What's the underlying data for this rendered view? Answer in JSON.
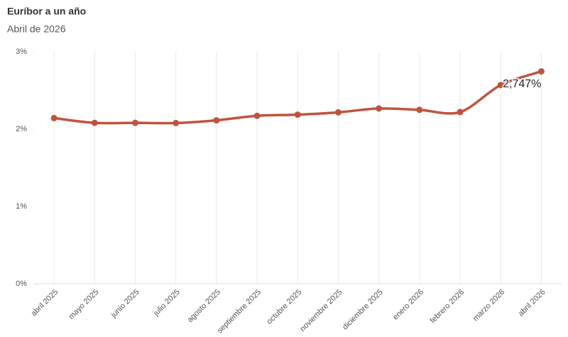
{
  "chart_data": {
    "type": "line",
    "title": "Euríbor a un año",
    "subtitle": "Abril de 2026",
    "categories": [
      "abril 2025",
      "mayo 2025",
      "junio 2025",
      "julio 2025",
      "agosto 2025",
      "septiembre 2025",
      "octubre 2025",
      "noviembre 2025",
      "diciembre 2025",
      "enero 2026",
      "febrero 2026",
      "marzo 2026",
      "abril 2026"
    ],
    "series": [
      {
        "name": "Euríbor a un año",
        "color": "#c0533e",
        "values": [
          2.143,
          2.081,
          2.081,
          2.079,
          2.114,
          2.172,
          2.187,
          2.217,
          2.267,
          2.249,
          2.221,
          2.57,
          2.747
        ],
        "value_labels": [
          null,
          null,
          null,
          null,
          null,
          null,
          null,
          null,
          null,
          null,
          null,
          null,
          "2,747%"
        ]
      }
    ],
    "ylim": [
      0,
      3
    ],
    "yticks": [
      {
        "value": 0,
        "label": "0%"
      },
      {
        "value": 1,
        "label": "1%"
      },
      {
        "value": 2,
        "label": "2%"
      },
      {
        "value": 3,
        "label": "3%"
      }
    ],
    "grid": "x"
  }
}
